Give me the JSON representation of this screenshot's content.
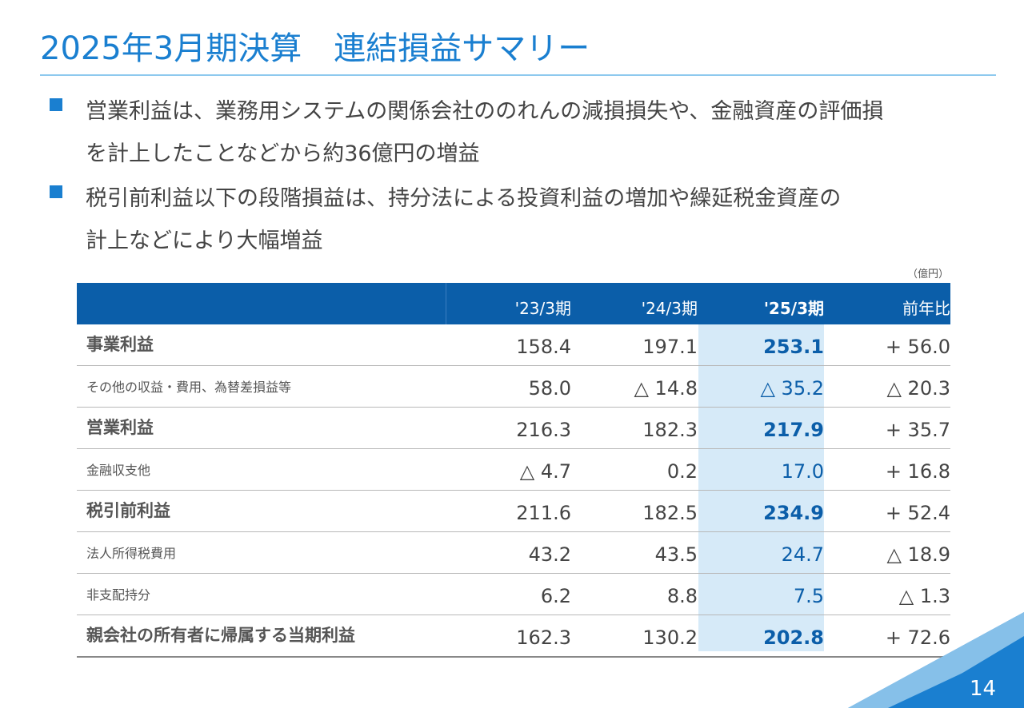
{
  "title": "2025年3月期決算　連結損益サマリー",
  "bullets": [
    {
      "line1": "営業利益は、業務用システムの関係会社ののれんの減損損失や、金融資産の評価損",
      "line2": "を計上したことなどから約36億円の増益"
    },
    {
      "line1": "税引前利益以下の段階損益は、持分法による投資利益の増加や繰延税金資産の",
      "line2": "計上などにより大幅増益"
    }
  ],
  "unit": "（億円）",
  "table": {
    "headers": [
      "'23/3期",
      "'24/3期",
      "'25/3期",
      "前年比"
    ],
    "rows": [
      {
        "label": "事業利益",
        "values": [
          "158.4",
          "197.1",
          "253.1",
          "+ 56.0"
        ]
      },
      {
        "label": "その他の収益・費用、為替差損益等",
        "values": [
          "58.0",
          "△ 14.8",
          "△ 35.2",
          "△ 20.3"
        ]
      },
      {
        "label": "営業利益",
        "values": [
          "216.3",
          "182.3",
          "217.9",
          "+ 35.7"
        ]
      },
      {
        "label": "金融収支他",
        "values": [
          "△ 4.7",
          "0.2",
          "17.0",
          "+ 16.8"
        ]
      },
      {
        "label": "税引前利益",
        "values": [
          "211.6",
          "182.5",
          "234.9",
          "+ 52.4"
        ]
      },
      {
        "label": "法人所得税費用",
        "values": [
          "43.2",
          "43.5",
          "24.7",
          "△ 18.9"
        ]
      },
      {
        "label": "非支配持分",
        "values": [
          "6.2",
          "8.8",
          "7.5",
          "△ 1.3"
        ]
      },
      {
        "label": "親会社の所有者に帰属する当期利益",
        "values": [
          "162.3",
          "130.2",
          "202.8",
          "+ 72.6"
        ]
      }
    ]
  },
  "page_number": "14",
  "colors": {
    "accent": "#1a7fd0",
    "header_bg": "#0b5ea9",
    "highlight": "#d6eaf8"
  }
}
